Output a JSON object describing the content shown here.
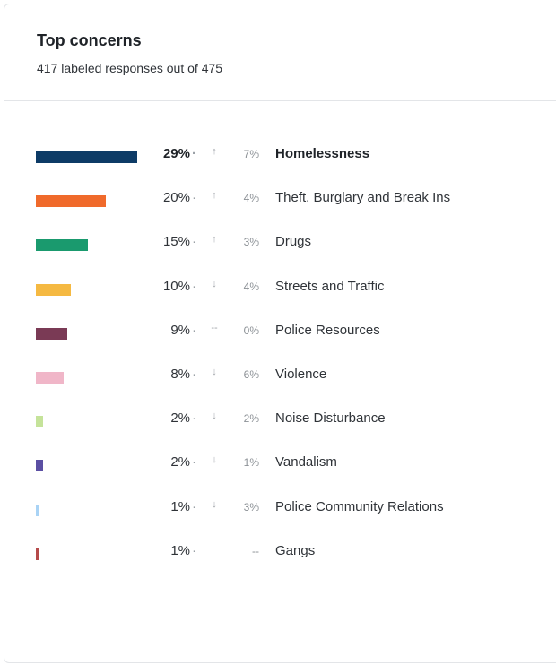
{
  "card": {
    "title": "Top concerns",
    "subtitle": "417 labeled responses out of 475"
  },
  "concerns": [
    {
      "label": "Homelessness",
      "percent": "29%",
      "trend": "↑",
      "change": "7%",
      "share": 29,
      "color": "#0d3b66",
      "bold": true
    },
    {
      "label": "Theft, Burglary and Break Ins",
      "percent": "20%",
      "trend": "↑",
      "change": "4%",
      "share": 20,
      "color": "#f06a2b",
      "bold": false
    },
    {
      "label": "Drugs",
      "percent": "15%",
      "trend": "↑",
      "change": "3%",
      "share": 15,
      "color": "#1a9a6e",
      "bold": false
    },
    {
      "label": "Streets and Traffic",
      "percent": "10%",
      "trend": "↓",
      "change": "4%",
      "share": 10,
      "color": "#f5b942",
      "bold": false
    },
    {
      "label": "Police Resources",
      "percent": "9%",
      "trend": "--",
      "change": "0%",
      "share": 9,
      "color": "#7a3a55",
      "bold": false
    },
    {
      "label": "Violence",
      "percent": "8%",
      "trend": "↓",
      "change": "6%",
      "share": 8,
      "color": "#f0b6c8",
      "bold": false
    },
    {
      "label": "Noise Disturbance",
      "percent": "2%",
      "trend": "↓",
      "change": "2%",
      "share": 2,
      "color": "#c5e39a",
      "bold": false
    },
    {
      "label": "Vandalism",
      "percent": "2%",
      "trend": "↓",
      "change": "1%",
      "share": 2,
      "color": "#5b4fa3",
      "bold": false
    },
    {
      "label": "Police Community Relations",
      "percent": "1%",
      "trend": "↓",
      "change": "3%",
      "share": 1,
      "color": "#a9d3f5",
      "bold": false
    },
    {
      "label": "Gangs",
      "percent": "1%",
      "trend": "",
      "change": "--",
      "share": 1,
      "color": "#b54a4a",
      "bold": false
    }
  ]
}
